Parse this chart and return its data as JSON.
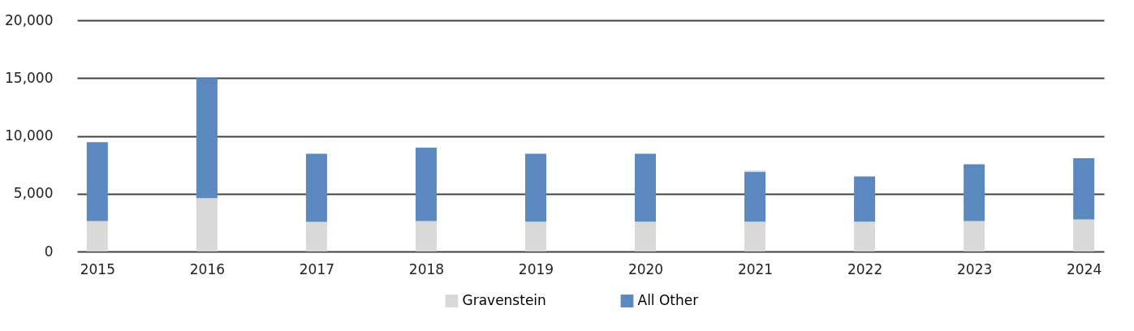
{
  "chart_data": {
    "type": "bar",
    "stacked": true,
    "categories": [
      "2015",
      "2016",
      "2017",
      "2018",
      "2019",
      "2020",
      "2021",
      "2022",
      "2023",
      "2024"
    ],
    "series": [
      {
        "name": "Gravenstein",
        "color": "#d9d9d9",
        "values": [
          2630,
          4620,
          2560,
          2630,
          2580,
          2580,
          2580,
          2580,
          2630,
          2780
        ]
      },
      {
        "name": "All Other",
        "color": "#5b88be",
        "values": [
          6820,
          10380,
          5900,
          6360,
          5880,
          5880,
          4290,
          3910,
          4920,
          5290
        ]
      },
      {
        "color": "#d9d9d9",
        "values": [
          null,
          null,
          null,
          null,
          null,
          null,
          130,
          null,
          null,
          null
        ]
      }
    ],
    "ylim": [
      0,
      20000
    ],
    "yticks": [
      0,
      {
        "value": 5000,
        "label": "5,000"
      },
      {
        "value": 10000,
        "label": "10,000"
      },
      {
        "value": 15000,
        "label": "15,000"
      },
      {
        "value": 20000,
        "label": "20,000"
      }
    ],
    "grid": "y",
    "legend": "bottom"
  }
}
